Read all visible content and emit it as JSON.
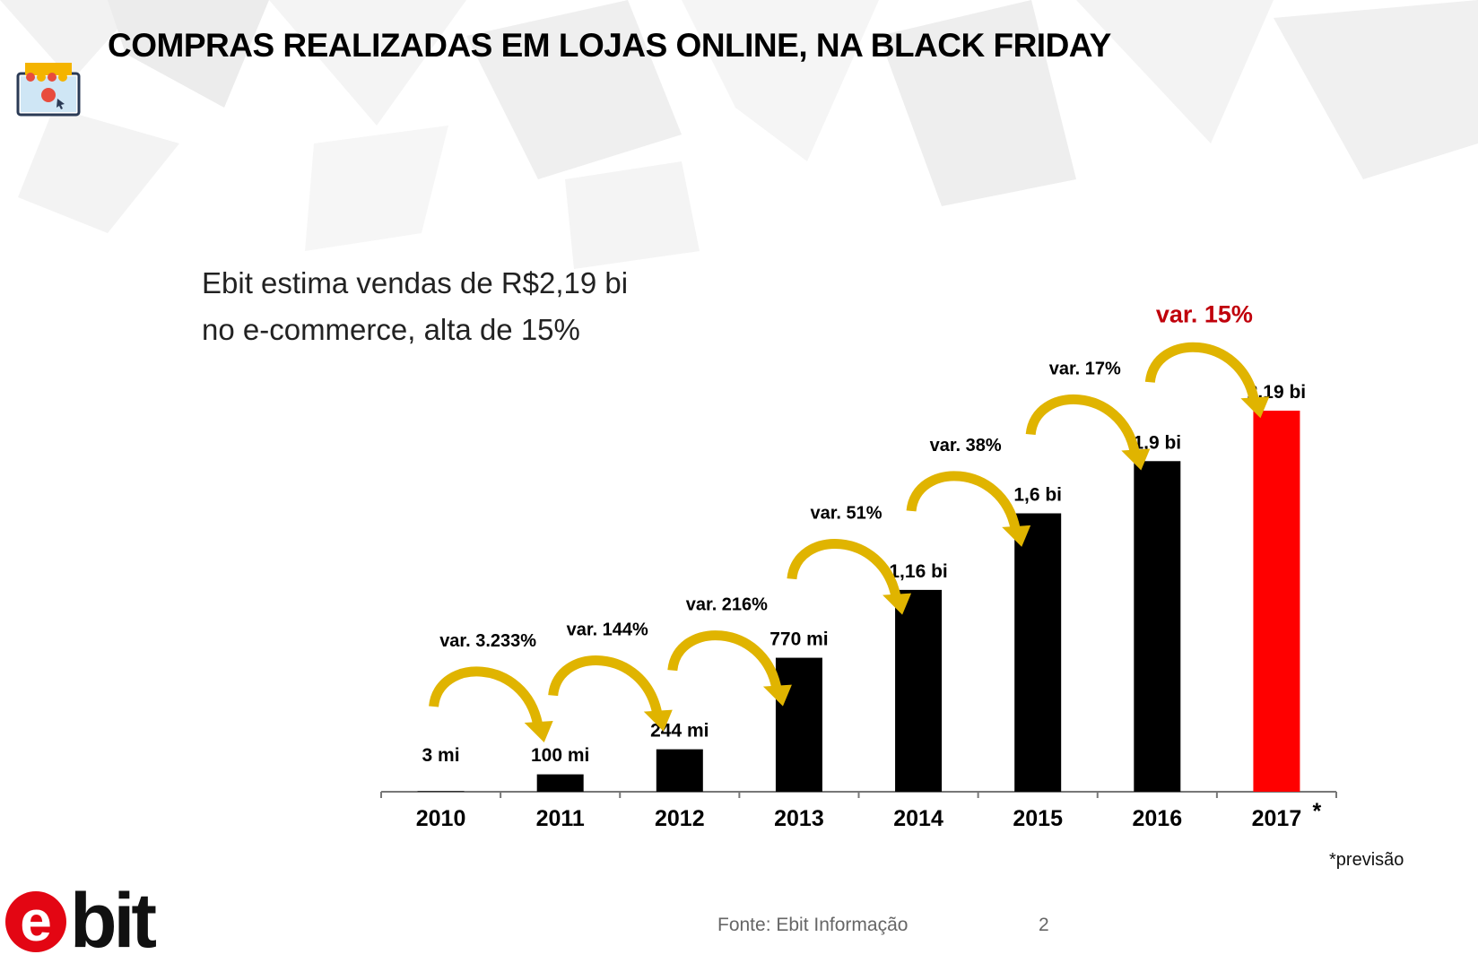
{
  "title": "COMPRAS REALIZADAS EM LOJAS ONLINE, NA BLACK FRIDAY",
  "subtitle": {
    "line1": "Ebit estima vendas de R$2,19 bi",
    "line2": "no e-commerce, alta de 15%"
  },
  "footnote": "*previsão",
  "source": "Fonte: Ebit Informação",
  "page_number": "2",
  "logo": {
    "text": "ebit"
  },
  "icons": {
    "shop": "online-shop-icon"
  },
  "colors": {
    "bar": "#000000",
    "highlight_bar": "#ff0000",
    "arrow": "#e0b400",
    "highlight_text": "#c0000b"
  },
  "chart_data": {
    "type": "bar",
    "categories": [
      "2010",
      "2011",
      "2012",
      "2013",
      "2014",
      "2015",
      "2016",
      "2017"
    ],
    "category_suffix": {
      "2017": "*"
    },
    "values": [
      0.003,
      0.1,
      0.244,
      0.77,
      1.16,
      1.6,
      1.9,
      2.19
    ],
    "unit": "R$ bi",
    "value_labels": [
      "3 mi",
      "100 mi",
      "244 mi",
      "770 mi",
      "1,16 bi",
      "1,6 bi",
      "1,9 bi",
      "2.19 bi"
    ],
    "highlight_index": 7,
    "variations": [
      "var.  3.233%",
      "var.  144%",
      "var.  216%",
      "var.  51%",
      "var.  38%",
      "var.  17%",
      "var.  15%"
    ],
    "ylim": [
      0,
      2.19
    ],
    "grid": false,
    "xlabel": "",
    "ylabel": ""
  }
}
